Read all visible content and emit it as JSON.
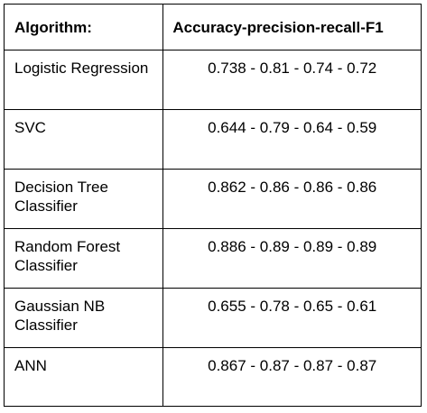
{
  "table": {
    "headers": {
      "algorithm": "Algorithm:",
      "metrics": "Accuracy-precision-recall-F1"
    },
    "rows": [
      {
        "algorithm": "Logistic Regression",
        "metrics": "0.738 - 0.81 - 0.74 - 0.72"
      },
      {
        "algorithm": "SVC",
        "metrics": "0.644 - 0.79 - 0.64 - 0.59"
      },
      {
        "algorithm": "Decision Tree Classifier",
        "metrics": "0.862 - 0.86 - 0.86 - 0.86"
      },
      {
        "algorithm": "Random Forest Classifier",
        "metrics": "0.886 - 0.89 - 0.89 - 0.89"
      },
      {
        "algorithm": "Gaussian NB Classifier",
        "metrics": "0.655 - 0.78 - 0.65 - 0.61"
      },
      {
        "algorithm": "ANN",
        "metrics": "0.867 - 0.87 - 0.87 - 0.87"
      }
    ]
  }
}
